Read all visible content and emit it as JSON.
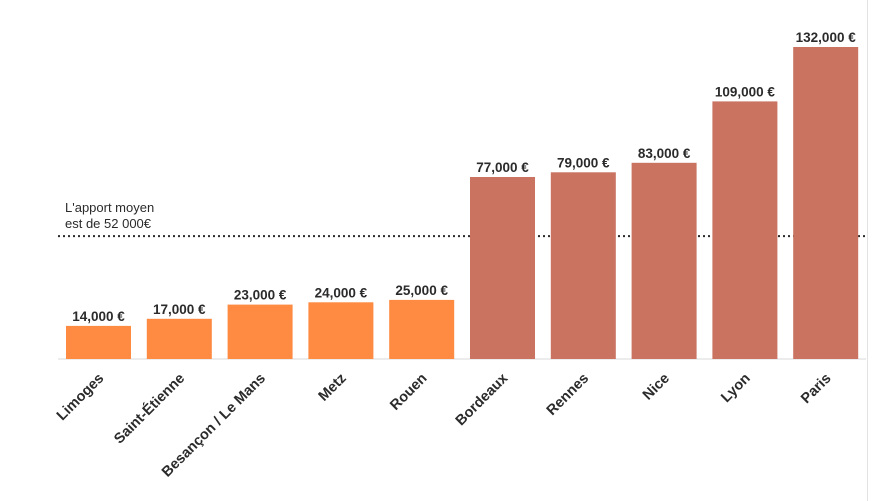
{
  "chart_data": {
    "type": "bar",
    "categories": [
      "Limoges",
      "Saint-Étienne",
      "Besançon / Le Mans",
      "Metz",
      "Rouen",
      "Bordeaux",
      "Rennes",
      "Nice",
      "Lyon",
      "Paris"
    ],
    "values": [
      14000,
      17000,
      23000,
      24000,
      25000,
      77000,
      79000,
      83000,
      109000,
      132000
    ],
    "value_labels": [
      "14,000 €",
      "17,000 €",
      "23,000 €",
      "24,000 €",
      "25,000 €",
      "77,000 €",
      "79,000 €",
      "83,000 €",
      "109,000 €",
      "132,000 €"
    ],
    "colors": [
      "#ff8a42",
      "#ff8a42",
      "#ff8a42",
      "#ff8a42",
      "#ff8a42",
      "#c97360",
      "#c97360",
      "#c97360",
      "#c97360",
      "#c97360"
    ],
    "ylim": [
      0,
      132000
    ],
    "grid": false,
    "reference_line": {
      "value": 52000,
      "label_lines": [
        "L'apport moyen",
        "est de 52 000€"
      ],
      "style": "dotted"
    }
  }
}
